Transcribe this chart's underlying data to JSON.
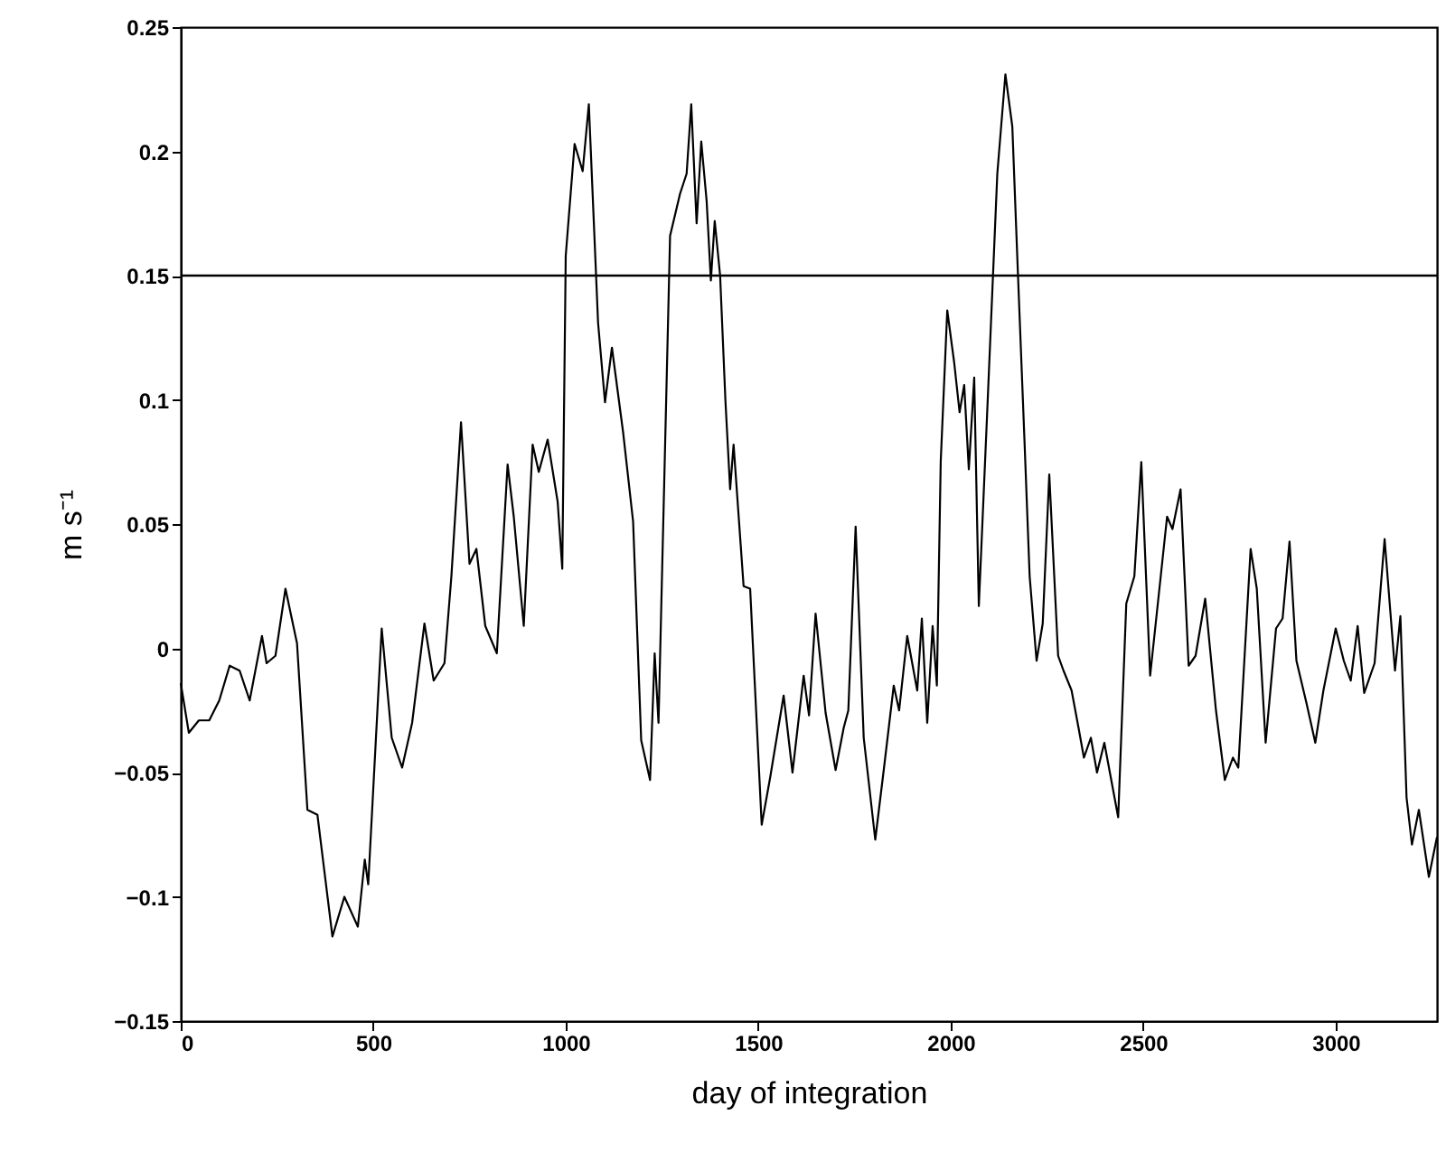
{
  "chart_data": {
    "type": "line",
    "xlabel": "day of integration",
    "ylabel": "m s⁻¹",
    "xlim": [
      0,
      3263
    ],
    "xticks": [
      0,
      500,
      1000,
      1500,
      2000,
      2500,
      3000
    ],
    "ylim": [
      -0.15,
      0.25
    ],
    "yticks": [
      -0.15,
      -0.1,
      -0.05,
      0,
      0.05,
      0.1,
      0.15,
      0.2,
      0.25
    ],
    "grid": false,
    "marker": "none",
    "line_style": "solid",
    "ref_lines": [
      {
        "axis": "y",
        "value": 0.15,
        "color": "#000000"
      }
    ],
    "series": [
      {
        "color": "#000000",
        "x": [
          0,
          21,
          47,
          74,
          100,
          127,
          153,
          179,
          211,
          223,
          246,
          272,
          302,
          329,
          355,
          394,
          425,
          460,
          478,
          487,
          522,
          548,
          575,
          601,
          633,
          657,
          685,
          703,
          728,
          750,
          768,
          791,
          821,
          849,
          865,
          891,
          914,
          930,
          953,
          979,
          991,
          1000,
          1023,
          1044,
          1060,
          1084,
          1102,
          1120,
          1149,
          1175,
          1196,
          1219,
          1231,
          1241,
          1271,
          1297,
          1314,
          1326,
          1340,
          1352,
          1366,
          1377,
          1387,
          1401,
          1415,
          1427,
          1436,
          1462,
          1479,
          1509,
          1531,
          1566,
          1589,
          1618,
          1632,
          1649,
          1675,
          1701,
          1722,
          1734,
          1753,
          1774,
          1804,
          1826,
          1852,
          1866,
          1887,
          1913,
          1925,
          1939,
          1953,
          1964,
          1974,
          1991,
          2009,
          2023,
          2035,
          2047,
          2061,
          2073,
          2095,
          2121,
          2142,
          2160,
          2174,
          2191,
          2205,
          2223,
          2239,
          2256,
          2279,
          2293,
          2314,
          2332,
          2346,
          2364,
          2380,
          2399,
          2435,
          2456,
          2477,
          2495,
          2518,
          2562,
          2576,
          2597,
          2618,
          2636,
          2661,
          2689,
          2712,
          2733,
          2747,
          2779,
          2795,
          2818,
          2845,
          2862,
          2880,
          2898,
          2924,
          2947,
          2968,
          3000,
          3021,
          3039,
          3057,
          3074,
          3101,
          3127,
          3154,
          3168,
          3184,
          3198,
          3216,
          3242,
          3263
        ],
        "values": [
          -0.014,
          -0.034,
          -0.029,
          -0.029,
          -0.021,
          -0.007,
          -0.009,
          -0.021,
          0.005,
          -0.006,
          -0.003,
          0.024,
          0.002,
          -0.065,
          -0.067,
          -0.116,
          -0.1,
          -0.112,
          -0.085,
          -0.095,
          0.008,
          -0.036,
          -0.048,
          -0.03,
          0.01,
          -0.013,
          -0.006,
          0.029,
          0.091,
          0.034,
          0.04,
          0.009,
          -0.002,
          0.074,
          0.053,
          0.009,
          0.082,
          0.071,
          0.084,
          0.059,
          0.032,
          0.158,
          0.203,
          0.192,
          0.219,
          0.131,
          0.099,
          0.121,
          0.087,
          0.051,
          -0.037,
          -0.053,
          -0.002,
          -0.03,
          0.166,
          0.183,
          0.191,
          0.219,
          0.171,
          0.204,
          0.18,
          0.148,
          0.172,
          0.15,
          0.099,
          0.064,
          0.082,
          0.025,
          0.024,
          -0.071,
          -0.052,
          -0.019,
          -0.05,
          -0.011,
          -0.027,
          0.014,
          -0.026,
          -0.049,
          -0.032,
          -0.025,
          0.049,
          -0.036,
          -0.077,
          -0.049,
          -0.015,
          -0.025,
          0.005,
          -0.017,
          0.012,
          -0.03,
          0.009,
          -0.015,
          0.075,
          0.136,
          0.115,
          0.095,
          0.106,
          0.072,
          0.109,
          0.017,
          0.096,
          0.191,
          0.231,
          0.21,
          0.153,
          0.086,
          0.029,
          -0.005,
          0.01,
          0.07,
          -0.003,
          -0.009,
          -0.017,
          -0.032,
          -0.044,
          -0.036,
          -0.05,
          -0.038,
          -0.068,
          0.018,
          0.029,
          0.075,
          -0.011,
          0.053,
          0.048,
          0.064,
          -0.007,
          -0.003,
          0.02,
          -0.025,
          -0.053,
          -0.044,
          -0.048,
          0.04,
          0.024,
          -0.038,
          0.008,
          0.012,
          0.043,
          -0.005,
          -0.022,
          -0.038,
          -0.017,
          0.008,
          -0.005,
          -0.013,
          0.009,
          -0.018,
          -0.006,
          0.044,
          -0.009,
          0.013,
          -0.06,
          -0.079,
          -0.065,
          -0.092,
          -0.076
        ]
      }
    ]
  }
}
